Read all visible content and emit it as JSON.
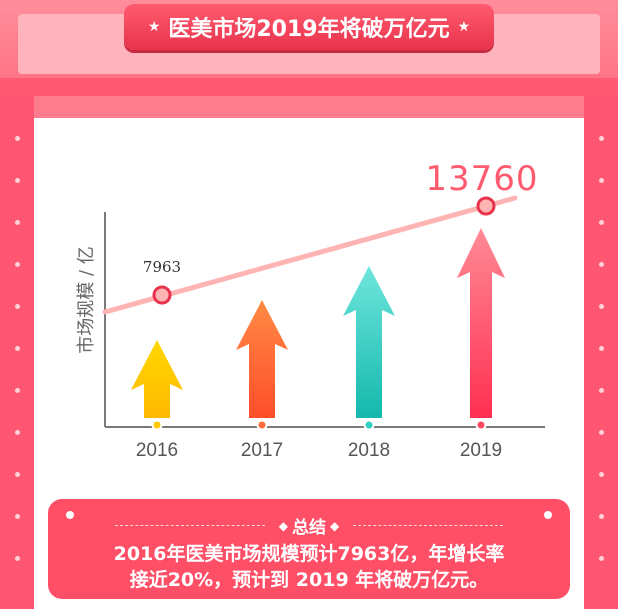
{
  "header": {
    "title": "医美市场2019年将破万亿元"
  },
  "chart_data": {
    "type": "bar",
    "categories": [
      "2016",
      "2017",
      "2018",
      "2019"
    ],
    "values": [
      7963,
      null,
      null,
      13760
    ],
    "data_labels": [
      "7963",
      "",
      "",
      "13760"
    ],
    "ylabel": "市场规模 / 亿",
    "xlabel": "",
    "trend_line": true,
    "legend": "none",
    "grid": false,
    "colors": [
      "#ffc800",
      "#ff6d3a",
      "#2fcfc5",
      "#ff4a62"
    ]
  },
  "summary": {
    "heading": "总结",
    "line1": "2016年医美市场规模预计7963亿，年增长率",
    "line2": "接近20%，预计到 2019 年将破万亿元。"
  },
  "colors": {
    "accent": "#ff4f67",
    "frame": "#ff5673",
    "trend": "#ffb3b3"
  }
}
